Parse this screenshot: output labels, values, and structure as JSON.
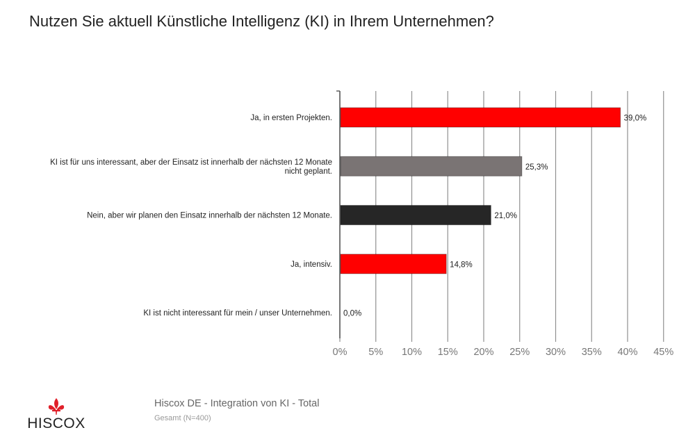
{
  "chart_data": {
    "type": "bar",
    "orientation": "horizontal",
    "title": "Nutzen Sie aktuell Künstliche Intelligenz (KI) in Ihrem Unternehmen?",
    "categories": [
      [
        "Ja, in ersten Projekten."
      ],
      [
        "KI ist für uns interessant, aber der Einsatz ist innerhalb der nächsten 12 Monate",
        "nicht geplant."
      ],
      [
        "Nein, aber wir planen den Einsatz innerhalb der nächsten 12 Monate."
      ],
      [
        "Ja, intensiv."
      ],
      [
        "KI ist nicht interessant für mein / unser Unternehmen."
      ]
    ],
    "values": [
      39.0,
      25.3,
      21.0,
      14.8,
      0.0
    ],
    "value_labels": [
      "39,0%",
      "25,3%",
      "21,0%",
      "14,8%",
      "0,0%"
    ],
    "bar_colors": [
      "#ff0000",
      "#7a7474",
      "#262626",
      "#ff0000",
      "#ff0000"
    ],
    "xlim": [
      0,
      45
    ],
    "x_ticks": [
      0,
      5,
      10,
      15,
      20,
      25,
      30,
      35,
      40,
      45
    ],
    "x_tick_labels": [
      "0%",
      "5%",
      "10%",
      "15%",
      "20%",
      "25%",
      "30%",
      "35%",
      "40%",
      "45%"
    ],
    "grid": "vertical"
  },
  "footer": {
    "source": "Hiscox DE - Integration von KI - Total",
    "base": "Gesamt (N=400)"
  },
  "logo": {
    "text": "HISCOX",
    "icon": "fleur-de-lis-icon",
    "color": "#e0202a"
  }
}
